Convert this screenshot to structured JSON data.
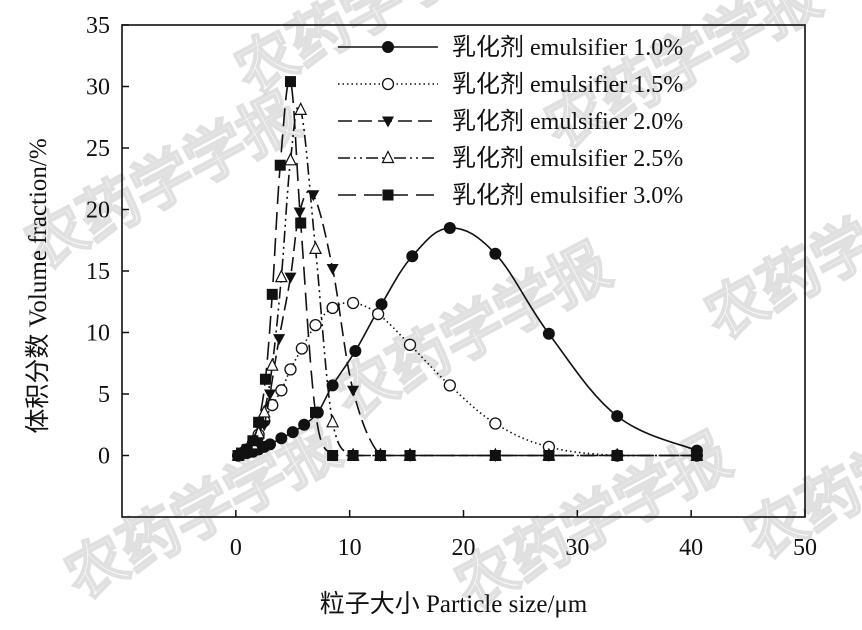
{
  "watermark": "农药学学报",
  "chart_data": {
    "type": "line",
    "xlabel": "粒子大小 Particle size/μm",
    "ylabel": "体积分数 Volume fraction/%",
    "xlim": [
      -10,
      50
    ],
    "ylim": [
      -5,
      35
    ],
    "xticks": [
      0,
      10,
      20,
      30,
      40,
      50
    ],
    "yticks": [
      0,
      5,
      10,
      15,
      20,
      25,
      30,
      35
    ],
    "grid": false,
    "legend_position": "top-right",
    "series": [
      {
        "name": "乳化剂 emulsifier 1.0%",
        "line_style": "solid",
        "marker": "filled-circle",
        "points": [
          [
            0.2,
            0.0
          ],
          [
            0.5,
            0.1
          ],
          [
            1.0,
            0.2
          ],
          [
            1.5,
            0.3
          ],
          [
            2.0,
            0.5
          ],
          [
            2.5,
            0.7
          ],
          [
            3.0,
            0.9
          ],
          [
            4.0,
            1.4
          ],
          [
            5.0,
            1.9
          ],
          [
            6.0,
            2.5
          ],
          [
            7.2,
            3.5
          ],
          [
            8.5,
            5.7
          ],
          [
            10.5,
            8.5
          ],
          [
            12.8,
            12.3
          ],
          [
            15.5,
            16.2
          ],
          [
            18.8,
            18.5
          ],
          [
            22.8,
            16.4
          ],
          [
            27.5,
            9.9
          ],
          [
            33.5,
            3.2
          ],
          [
            40.5,
            0.4
          ]
        ]
      },
      {
        "name": "乳化剂 emulsifier 1.5%",
        "line_style": "dotted",
        "marker": "open-circle",
        "points": [
          [
            0.2,
            0.0
          ],
          [
            0.6,
            0.2
          ],
          [
            1.0,
            0.5
          ],
          [
            1.5,
            1.0
          ],
          [
            2.0,
            1.7
          ],
          [
            2.5,
            2.8
          ],
          [
            3.2,
            4.1
          ],
          [
            4.0,
            5.3
          ],
          [
            4.8,
            7.0
          ],
          [
            5.8,
            8.7
          ],
          [
            7.0,
            10.6
          ],
          [
            8.5,
            12.0
          ],
          [
            10.3,
            12.4
          ],
          [
            12.5,
            11.5
          ],
          [
            15.3,
            9.0
          ],
          [
            18.8,
            5.7
          ],
          [
            22.8,
            2.6
          ],
          [
            27.5,
            0.7
          ],
          [
            33.5,
            0.0
          ],
          [
            40.5,
            0.0
          ]
        ]
      },
      {
        "name": "乳化剂 emulsifier 2.0%",
        "line_style": "long-dash",
        "marker": "filled-triangle-down",
        "points": [
          [
            0.2,
            0.0
          ],
          [
            0.5,
            0.1
          ],
          [
            1.0,
            0.2
          ],
          [
            1.5,
            0.5
          ],
          [
            2.0,
            1.1
          ],
          [
            2.5,
            2.5
          ],
          [
            3.0,
            5.0
          ],
          [
            3.8,
            9.5
          ],
          [
            4.8,
            14.5
          ],
          [
            5.6,
            19.8
          ],
          [
            6.8,
            21.2
          ],
          [
            8.5,
            15.2
          ],
          [
            10.3,
            5.3
          ],
          [
            12.7,
            0.0
          ],
          [
            15.3,
            0.0
          ],
          [
            22.8,
            0.0
          ],
          [
            27.5,
            0.0
          ],
          [
            33.5,
            0.0
          ],
          [
            40.5,
            0.0
          ]
        ]
      },
      {
        "name": "乳化剂 emulsifier 2.5%",
        "line_style": "dash-dot-dot",
        "marker": "open-triangle-up",
        "points": [
          [
            0.2,
            0.0
          ],
          [
            0.5,
            0.2
          ],
          [
            1.0,
            0.4
          ],
          [
            1.5,
            0.9
          ],
          [
            2.0,
            1.8
          ],
          [
            2.5,
            3.5
          ],
          [
            3.2,
            7.3
          ],
          [
            4.0,
            14.5
          ],
          [
            4.8,
            24.0
          ],
          [
            5.7,
            28.1
          ],
          [
            7.0,
            16.8
          ],
          [
            8.5,
            2.7
          ],
          [
            10.3,
            0.0
          ],
          [
            12.7,
            0.0
          ],
          [
            15.3,
            0.0
          ],
          [
            22.8,
            0.0
          ],
          [
            27.5,
            0.0
          ],
          [
            33.5,
            0.0
          ],
          [
            40.5,
            0.0
          ]
        ]
      },
      {
        "name": "乳化剂 emulsifier 3.0%",
        "line_style": "dash-long",
        "marker": "filled-square",
        "points": [
          [
            0.2,
            0.0
          ],
          [
            0.5,
            0.2
          ],
          [
            1.0,
            0.5
          ],
          [
            1.5,
            1.2
          ],
          [
            2.0,
            2.7
          ],
          [
            2.6,
            6.2
          ],
          [
            3.2,
            13.1
          ],
          [
            3.9,
            23.6
          ],
          [
            4.8,
            30.4
          ],
          [
            5.7,
            18.9
          ],
          [
            7.0,
            3.5
          ],
          [
            8.5,
            0.0
          ],
          [
            10.3,
            0.0
          ],
          [
            12.7,
            0.0
          ],
          [
            15.3,
            0.0
          ],
          [
            22.8,
            0.0
          ],
          [
            27.5,
            0.0
          ],
          [
            33.5,
            0.0
          ],
          [
            40.5,
            0.0
          ]
        ]
      }
    ]
  }
}
